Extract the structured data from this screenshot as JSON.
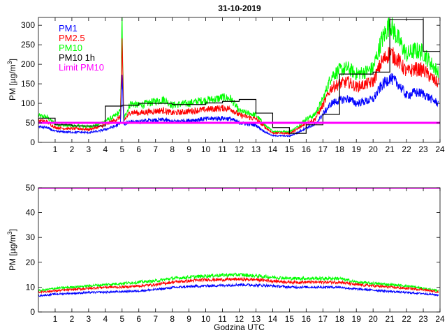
{
  "figure_title": "31-10-2019",
  "chart_data": [
    {
      "type": "line",
      "title": "31-10-2019",
      "xlabel": "",
      "ylabel": "PM [µg/m3]",
      "ylabel_parts": {
        "prefix": "PM [µg/m",
        "sup": "3",
        "suffix": "]"
      },
      "xlim": [
        0,
        24
      ],
      "ylim": [
        0,
        320
      ],
      "xticks": [
        1,
        2,
        3,
        4,
        5,
        6,
        7,
        8,
        9,
        10,
        11,
        12,
        13,
        14,
        15,
        16,
        17,
        18,
        19,
        20,
        21,
        22,
        23,
        24
      ],
      "xtick_labels": [
        "1",
        "2",
        "3",
        "4",
        "5",
        "6",
        "7",
        "8",
        "9",
        "10",
        "11",
        "12",
        "13",
        "14",
        "15",
        "16",
        "17",
        "18",
        "19",
        "20",
        "21",
        "22",
        "23",
        "24"
      ],
      "yticks": [
        0,
        50,
        100,
        150,
        200,
        250,
        300
      ],
      "ytick_labels": [
        "0",
        "50",
        "100",
        "150",
        "200",
        "250",
        "300"
      ],
      "legend": {
        "placement": "top-left",
        "entries": [
          {
            "name": "PM1",
            "color": "#0000ff"
          },
          {
            "name": "PM2.5",
            "color": "#ff0000"
          },
          {
            "name": "PM10",
            "color": "#00ff00"
          },
          {
            "name": "PM10 1h",
            "color": "#000000"
          },
          {
            "name": "Limit PM10",
            "color": "#ff00ff"
          }
        ]
      },
      "series": [
        {
          "name": "PM10",
          "color": "#00ff00",
          "x": [
            0,
            0.5,
            1,
            1.5,
            2,
            2.5,
            3,
            3.5,
            4,
            4.5,
            4.9,
            5.0,
            5.1,
            5.5,
            6,
            6.5,
            7,
            7.5,
            8,
            8.5,
            9,
            9.5,
            10,
            10.5,
            11,
            11.5,
            12,
            12.5,
            13,
            13.5,
            14,
            14.5,
            15,
            15.5,
            16,
            16.5,
            17,
            17.5,
            18,
            18.5,
            19,
            19.5,
            20,
            20.5,
            21,
            21.5,
            22,
            22.5,
            23,
            23.5,
            23.9
          ],
          "y": [
            68,
            65,
            47,
            44,
            42,
            42,
            40,
            45,
            55,
            65,
            80,
            310,
            60,
            100,
            95,
            100,
            105,
            110,
            95,
            98,
            100,
            105,
            108,
            110,
            115,
            112,
            80,
            75,
            70,
            45,
            28,
            28,
            27,
            40,
            60,
            70,
            110,
            170,
            185,
            190,
            175,
            180,
            190,
            260,
            305,
            265,
            225,
            235,
            230,
            200,
            180
          ]
        },
        {
          "name": "PM2.5",
          "color": "#ff0000",
          "x": [
            0,
            0.5,
            1,
            1.5,
            2,
            2.5,
            3,
            3.5,
            4,
            4.5,
            4.9,
            5.0,
            5.1,
            5.5,
            6,
            6.5,
            7,
            7.5,
            8,
            8.5,
            9,
            9.5,
            10,
            10.5,
            11,
            11.5,
            12,
            12.5,
            13,
            13.5,
            14,
            14.5,
            15,
            15.5,
            16,
            16.5,
            17,
            17.5,
            18,
            18.5,
            19,
            19.5,
            20,
            20.5,
            21,
            21.5,
            22,
            22.5,
            23,
            23.5,
            23.9
          ],
          "y": [
            55,
            53,
            38,
            36,
            35,
            35,
            33,
            38,
            45,
            55,
            65,
            250,
            55,
            78,
            75,
            78,
            80,
            82,
            75,
            77,
            80,
            82,
            84,
            86,
            88,
            86,
            70,
            65,
            60,
            40,
            24,
            24,
            23,
            34,
            50,
            58,
            95,
            140,
            150,
            155,
            142,
            148,
            155,
            205,
            230,
            210,
            180,
            188,
            185,
            165,
            150
          ]
        },
        {
          "name": "PM1",
          "color": "#0000ff",
          "x": [
            0,
            0.5,
            1,
            1.5,
            2,
            2.5,
            3,
            3.5,
            4,
            4.5,
            4.9,
            5.0,
            5.1,
            5.5,
            6,
            6.5,
            7,
            7.5,
            8,
            8.5,
            9,
            9.5,
            10,
            10.5,
            11,
            11.5,
            12,
            12.5,
            13,
            13.5,
            14,
            14.5,
            15,
            15.5,
            16,
            16.5,
            17,
            17.5,
            18,
            18.5,
            19,
            19.5,
            20,
            20.5,
            21,
            21.5,
            22,
            22.5,
            23,
            23.5,
            23.9
          ],
          "y": [
            40,
            38,
            28,
            27,
            26,
            26,
            25,
            28,
            33,
            40,
            48,
            175,
            45,
            55,
            52,
            55,
            56,
            58,
            53,
            55,
            56,
            58,
            60,
            61,
            62,
            60,
            50,
            47,
            44,
            28,
            17,
            17,
            16,
            25,
            38,
            44,
            72,
            100,
            108,
            112,
            100,
            105,
            110,
            145,
            165,
            150,
            120,
            128,
            125,
            110,
            100
          ]
        },
        {
          "name": "PM10 1h",
          "color": "#000000",
          "style": "step",
          "x": [
            0,
            1,
            2,
            3,
            4,
            5,
            6,
            7,
            8,
            9,
            10,
            11,
            12,
            13,
            14,
            15,
            16,
            17,
            18,
            19,
            20,
            21,
            22,
            23,
            24
          ],
          "y": [
            62,
            45,
            42,
            42,
            93,
            95,
            100,
            100,
            97,
            97,
            101,
            105,
            110,
            75,
            38,
            23,
            45,
            72,
            175,
            175,
            180,
            315,
            315,
            233,
            315
          ]
        },
        {
          "name": "Limit PM10",
          "color": "#ff00ff",
          "style": "constant",
          "x": [
            0,
            24
          ],
          "y": [
            50,
            50
          ]
        }
      ]
    },
    {
      "type": "line",
      "title": "",
      "xlabel": "Godzina UTC",
      "ylabel": "PM [µg/m3]",
      "ylabel_parts": {
        "prefix": "PM [µg/m",
        "sup": "3",
        "suffix": "]"
      },
      "xlim": [
        0,
        24
      ],
      "ylim": [
        0,
        50
      ],
      "xticks": [
        1,
        2,
        3,
        4,
        5,
        6,
        7,
        8,
        9,
        10,
        11,
        12,
        13,
        14,
        15,
        16,
        17,
        18,
        19,
        20,
        21,
        22,
        23,
        24
      ],
      "xtick_labels": [
        "1",
        "2",
        "3",
        "4",
        "5",
        "6",
        "7",
        "8",
        "9",
        "10",
        "11",
        "12",
        "13",
        "14",
        "15",
        "16",
        "17",
        "18",
        "19",
        "20",
        "21",
        "22",
        "23",
        "24"
      ],
      "yticks": [
        0,
        10,
        20,
        30,
        40,
        50
      ],
      "ytick_labels": [
        "0",
        "10",
        "20",
        "30",
        "40",
        "50"
      ],
      "series": [
        {
          "name": "PM10",
          "color": "#00ff00",
          "x": [
            0,
            1,
            2,
            3,
            4,
            5,
            6,
            7,
            8,
            9,
            10,
            11,
            12,
            13,
            14,
            15,
            16,
            17,
            18,
            19,
            20,
            21,
            22,
            23,
            23.9
          ],
          "y": [
            8.5,
            9.5,
            10,
            10.5,
            11,
            11.5,
            12,
            12.5,
            13.5,
            14,
            14.5,
            14.8,
            15,
            14.5,
            14,
            13.5,
            13.5,
            13.5,
            13.5,
            12,
            11.5,
            11,
            10.5,
            9.5,
            8.5
          ]
        },
        {
          "name": "PM2.5",
          "color": "#ff0000",
          "x": [
            0,
            1,
            2,
            3,
            4,
            5,
            6,
            7,
            8,
            9,
            10,
            11,
            12,
            13,
            14,
            15,
            16,
            17,
            18,
            19,
            20,
            21,
            22,
            23,
            23.9
          ],
          "y": [
            8,
            8.5,
            9,
            9.5,
            10,
            10,
            10.5,
            11,
            12,
            12.5,
            13,
            13,
            13.2,
            13,
            12.5,
            12,
            12,
            12,
            12,
            11,
            10.5,
            10,
            9.5,
            9,
            8
          ]
        },
        {
          "name": "PM1",
          "color": "#0000ff",
          "x": [
            0,
            1,
            2,
            3,
            4,
            5,
            6,
            7,
            8,
            9,
            10,
            11,
            12,
            13,
            14,
            15,
            16,
            17,
            18,
            19,
            20,
            21,
            22,
            23,
            23.9
          ],
          "y": [
            6.5,
            7.2,
            7.5,
            7.8,
            8,
            8.2,
            8.5,
            9,
            9.8,
            10.2,
            10.5,
            10.7,
            11,
            10.8,
            10.5,
            10,
            10,
            10,
            10,
            9.2,
            8.8,
            8.3,
            7.8,
            7.4,
            6.8
          ]
        },
        {
          "name": "Limit PM10",
          "color": "#ff00ff",
          "style": "constant",
          "x": [
            0,
            24
          ],
          "y": [
            50,
            50
          ]
        }
      ]
    }
  ]
}
